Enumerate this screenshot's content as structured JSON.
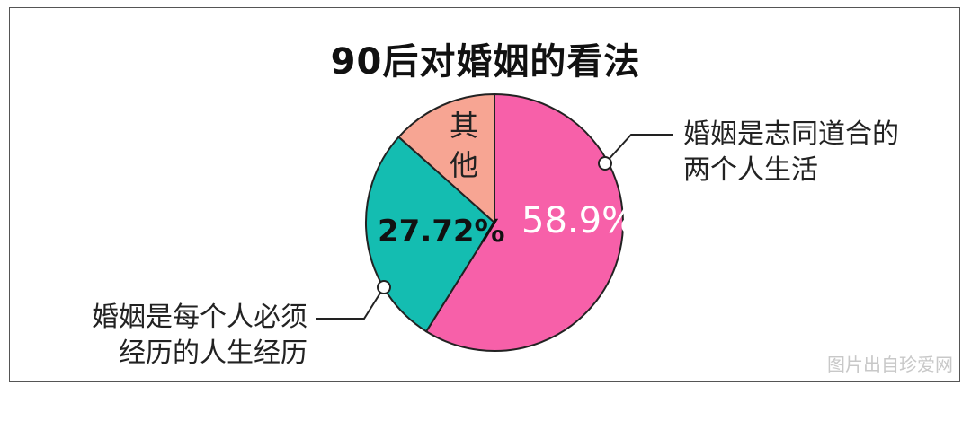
{
  "chart_data": {
    "type": "pie",
    "title": "90后对婚姻的看法",
    "slices": [
      {
        "label": "婚姻是志同道合的两个人生活",
        "value": 58.9,
        "value_label": "58.9%",
        "color": "#f760a9",
        "text_color": "#ffffff"
      },
      {
        "label": "婚姻是每个人必须经历的人生经历",
        "value": 27.72,
        "value_label": "27.72%",
        "color": "#14bdb1",
        "text_color": "#111111"
      },
      {
        "label": "其他",
        "value": 13.38,
        "color": "#f7a593"
      }
    ],
    "start": "top",
    "direction": "clockwise"
  },
  "callouts": {
    "pink": [
      "婚姻是志同道合的",
      "两个人生活"
    ],
    "teal": [
      "婚姻是每个人必须",
      "经历的人生经历"
    ]
  },
  "watermark": "图片出自珍爱网"
}
